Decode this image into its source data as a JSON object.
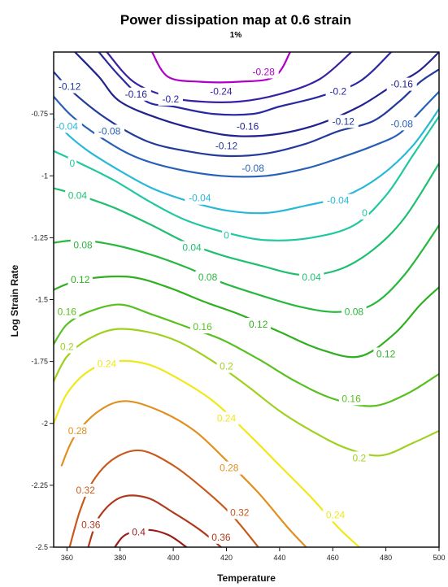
{
  "chart_data": {
    "type": "contour",
    "title": "Power dissipation map at 0.6 strain",
    "subtitle": "1%",
    "xlabel": "Temperature",
    "ylabel": "Log Strain Rate",
    "xlim": [
      355,
      500
    ],
    "ylim": [
      -2.5,
      -0.5
    ],
    "x_ticks": [
      "360",
      "380",
      "400",
      "420",
      "440",
      "460",
      "480",
      "500"
    ],
    "x_tick_values": [
      360,
      380,
      400,
      420,
      440,
      460,
      480,
      500
    ],
    "y_ticks": [
      "-0.75",
      "-1",
      "-1.25",
      "-1.5",
      "-1.75",
      "-2",
      "-2.25",
      "-2.5"
    ],
    "y_tick_values": [
      -0.75,
      -1,
      -1.25,
      -1.5,
      -1.75,
      -2,
      -2.25,
      -2.5
    ],
    "levels": [
      {
        "value": -0.28,
        "color": "#b000c8",
        "points": [
          [
            392,
            -0.5
          ],
          [
            398,
            -0.6
          ],
          [
            410,
            -0.62
          ],
          [
            425,
            -0.62
          ],
          [
            438,
            -0.6
          ],
          [
            444,
            -0.5
          ]
        ],
        "labels": [
          {
            "text": "-0.28",
            "x": 434,
            "y": -0.58
          }
        ]
      },
      {
        "value": -0.24,
        "color": "#3a1fa0",
        "points": [
          [
            375,
            -0.5
          ],
          [
            385,
            -0.62
          ],
          [
            398,
            -0.68
          ],
          [
            410,
            -0.7
          ],
          [
            425,
            -0.7
          ],
          [
            440,
            -0.67
          ],
          [
            455,
            -0.61
          ],
          [
            467,
            -0.5
          ]
        ],
        "labels": [
          {
            "text": "-0.24",
            "x": 418,
            "y": -0.66
          }
        ]
      },
      {
        "value": -0.2,
        "color": "#2828a0",
        "points": [
          [
            372,
            -0.5
          ],
          [
            380,
            -0.6
          ],
          [
            390,
            -0.7
          ],
          [
            400,
            -0.72
          ],
          [
            415,
            -0.75
          ],
          [
            430,
            -0.75
          ],
          [
            440,
            -0.72
          ],
          [
            455,
            -0.68
          ],
          [
            470,
            -0.62
          ],
          [
            482,
            -0.5
          ]
        ],
        "labels": [
          {
            "text": "-0.2",
            "x": 399,
            "y": -0.69
          },
          {
            "text": "-0.2",
            "x": 462,
            "y": -0.66
          }
        ]
      },
      {
        "value": -0.16,
        "color": "#22228e",
        "points": [
          [
            363,
            -0.5
          ],
          [
            372,
            -0.6
          ],
          [
            380,
            -0.7
          ],
          [
            395,
            -0.77
          ],
          [
            412,
            -0.82
          ],
          [
            425,
            -0.84
          ],
          [
            440,
            -0.83
          ],
          [
            455,
            -0.79
          ],
          [
            470,
            -0.72
          ],
          [
            482,
            -0.64
          ],
          [
            492,
            -0.58
          ],
          [
            500,
            -0.5
          ]
        ],
        "labels": [
          {
            "text": "-0.16",
            "x": 386,
            "y": -0.67
          },
          {
            "text": "-0.16",
            "x": 428,
            "y": -0.8
          },
          {
            "text": "-0.16",
            "x": 486,
            "y": -0.63
          }
        ]
      },
      {
        "value": -0.12,
        "color": "#223a9c",
        "points": [
          [
            355,
            -0.58
          ],
          [
            362,
            -0.66
          ],
          [
            375,
            -0.77
          ],
          [
            390,
            -0.86
          ],
          [
            405,
            -0.9
          ],
          [
            420,
            -0.92
          ],
          [
            435,
            -0.91
          ],
          [
            450,
            -0.87
          ],
          [
            462,
            -0.82
          ],
          [
            475,
            -0.78
          ],
          [
            485,
            -0.7
          ],
          [
            493,
            -0.62
          ],
          [
            500,
            -0.57
          ]
        ],
        "labels": [
          {
            "text": "-0.12",
            "x": 361,
            "y": -0.64
          },
          {
            "text": "-0.12",
            "x": 420,
            "y": -0.88
          },
          {
            "text": "-0.12",
            "x": 464,
            "y": -0.78
          }
        ]
      },
      {
        "value": -0.08,
        "color": "#2860b8",
        "points": [
          [
            355,
            -0.68
          ],
          [
            362,
            -0.76
          ],
          [
            372,
            -0.84
          ],
          [
            385,
            -0.92
          ],
          [
            400,
            -0.97
          ],
          [
            418,
            -1.0
          ],
          [
            435,
            -1.0
          ],
          [
            450,
            -0.97
          ],
          [
            462,
            -0.93
          ],
          [
            475,
            -0.88
          ],
          [
            485,
            -0.83
          ],
          [
            492,
            -0.75
          ],
          [
            500,
            -0.66
          ]
        ],
        "labels": [
          {
            "text": "-0.08",
            "x": 376,
            "y": -0.82
          },
          {
            "text": "-0.08",
            "x": 430,
            "y": -0.97
          },
          {
            "text": "-0.08",
            "x": 486,
            "y": -0.79
          }
        ]
      },
      {
        "value": -0.04,
        "color": "#28b8d8",
        "points": [
          [
            355,
            -0.77
          ],
          [
            360,
            -0.83
          ],
          [
            368,
            -0.9
          ],
          [
            380,
            -0.98
          ],
          [
            392,
            -1.05
          ],
          [
            405,
            -1.1
          ],
          [
            420,
            -1.14
          ],
          [
            435,
            -1.15
          ],
          [
            450,
            -1.12
          ],
          [
            465,
            -1.08
          ],
          [
            478,
            -1.0
          ],
          [
            490,
            -0.88
          ],
          [
            500,
            -0.73
          ]
        ],
        "labels": [
          {
            "text": "-0.04",
            "x": 360,
            "y": -0.8
          },
          {
            "text": "-0.04",
            "x": 410,
            "y": -1.09
          },
          {
            "text": "-0.04",
            "x": 462,
            "y": -1.1
          }
        ]
      },
      {
        "value": 0,
        "color": "#20c8a0",
        "points": [
          [
            355,
            -0.9
          ],
          [
            365,
            -0.95
          ],
          [
            378,
            -1.02
          ],
          [
            392,
            -1.11
          ],
          [
            405,
            -1.18
          ],
          [
            420,
            -1.23
          ],
          [
            435,
            -1.26
          ],
          [
            452,
            -1.25
          ],
          [
            468,
            -1.2
          ],
          [
            480,
            -1.08
          ],
          [
            490,
            -0.92
          ],
          [
            500,
            -0.76
          ]
        ],
        "labels": [
          {
            "text": "0",
            "x": 362,
            "y": -0.95
          },
          {
            "text": "0",
            "x": 420,
            "y": -1.24
          },
          {
            "text": "0",
            "x": 472,
            "y": -1.15
          }
        ]
      },
      {
        "value": 0.04,
        "color": "#20c070",
        "points": [
          [
            355,
            -1.05
          ],
          [
            365,
            -1.08
          ],
          [
            378,
            -1.13
          ],
          [
            392,
            -1.2
          ],
          [
            405,
            -1.27
          ],
          [
            418,
            -1.32
          ],
          [
            432,
            -1.36
          ],
          [
            448,
            -1.4
          ],
          [
            462,
            -1.38
          ],
          [
            475,
            -1.3
          ],
          [
            487,
            -1.17
          ],
          [
            500,
            -0.95
          ]
        ],
        "labels": [
          {
            "text": "0.04",
            "x": 364,
            "y": -1.08
          },
          {
            "text": "0.04",
            "x": 407,
            "y": -1.29
          },
          {
            "text": "0.04",
            "x": 452,
            "y": -1.41
          }
        ]
      },
      {
        "value": 0.08,
        "color": "#28b840",
        "points": [
          [
            355,
            -1.27
          ],
          [
            365,
            -1.26
          ],
          [
            378,
            -1.28
          ],
          [
            392,
            -1.32
          ],
          [
            405,
            -1.37
          ],
          [
            418,
            -1.43
          ],
          [
            432,
            -1.48
          ],
          [
            448,
            -1.53
          ],
          [
            462,
            -1.55
          ],
          [
            475,
            -1.52
          ],
          [
            487,
            -1.4
          ],
          [
            500,
            -1.2
          ]
        ],
        "labels": [
          {
            "text": "0.08",
            "x": 366,
            "y": -1.28
          },
          {
            "text": "0.08",
            "x": 413,
            "y": -1.41
          },
          {
            "text": "0.08",
            "x": 468,
            "y": -1.55
          }
        ]
      },
      {
        "value": 0.12,
        "color": "#30b020",
        "points": [
          [
            355,
            -1.46
          ],
          [
            362,
            -1.43
          ],
          [
            372,
            -1.41
          ],
          [
            385,
            -1.41
          ],
          [
            398,
            -1.45
          ],
          [
            412,
            -1.51
          ],
          [
            425,
            -1.56
          ],
          [
            440,
            -1.63
          ],
          [
            455,
            -1.7
          ],
          [
            470,
            -1.73
          ],
          [
            483,
            -1.64
          ],
          [
            493,
            -1.52
          ],
          [
            500,
            -1.45
          ]
        ],
        "labels": [
          {
            "text": "0.12",
            "x": 365,
            "y": -1.42
          },
          {
            "text": "0.12",
            "x": 432,
            "y": -1.6
          },
          {
            "text": "0.12",
            "x": 480,
            "y": -1.72
          }
        ]
      },
      {
        "value": 0.16,
        "color": "#58c020",
        "points": [
          [
            355,
            -1.68
          ],
          [
            360,
            -1.6
          ],
          [
            368,
            -1.55
          ],
          [
            380,
            -1.52
          ],
          [
            392,
            -1.56
          ],
          [
            405,
            -1.61
          ],
          [
            418,
            -1.66
          ],
          [
            432,
            -1.74
          ],
          [
            446,
            -1.83
          ],
          [
            460,
            -1.9
          ],
          [
            475,
            -1.93
          ],
          [
            488,
            -1.88
          ],
          [
            500,
            -1.8
          ]
        ],
        "labels": [
          {
            "text": "0.16",
            "x": 360,
            "y": -1.55
          },
          {
            "text": "0.16",
            "x": 411,
            "y": -1.61
          },
          {
            "text": "0.16",
            "x": 467,
            "y": -1.9
          }
        ]
      },
      {
        "value": 0.2,
        "color": "#a0d020",
        "points": [
          [
            355,
            -1.83
          ],
          [
            360,
            -1.73
          ],
          [
            368,
            -1.66
          ],
          [
            378,
            -1.62
          ],
          [
            390,
            -1.63
          ],
          [
            402,
            -1.67
          ],
          [
            415,
            -1.75
          ],
          [
            428,
            -1.85
          ],
          [
            440,
            -1.95
          ],
          [
            452,
            -2.03
          ],
          [
            465,
            -2.1
          ],
          [
            478,
            -2.13
          ],
          [
            490,
            -2.08
          ],
          [
            500,
            -2.03
          ]
        ],
        "labels": [
          {
            "text": "0.2",
            "x": 360,
            "y": -1.69
          },
          {
            "text": "0.2",
            "x": 420,
            "y": -1.77
          },
          {
            "text": "0.2",
            "x": 470,
            "y": -2.14
          }
        ]
      },
      {
        "value": 0.24,
        "color": "#f0e818",
        "points": [
          [
            355,
            -2.0
          ],
          [
            360,
            -1.88
          ],
          [
            368,
            -1.79
          ],
          [
            378,
            -1.75
          ],
          [
            390,
            -1.76
          ],
          [
            402,
            -1.82
          ],
          [
            415,
            -1.91
          ],
          [
            428,
            -2.04
          ],
          [
            440,
            -2.17
          ],
          [
            452,
            -2.3
          ],
          [
            462,
            -2.42
          ],
          [
            470,
            -2.5
          ]
        ],
        "labels": [
          {
            "text": "0.24",
            "x": 375,
            "y": -1.76
          },
          {
            "text": "0.24",
            "x": 420,
            "y": -1.98
          },
          {
            "text": "0.24",
            "x": 461,
            "y": -2.37
          }
        ]
      },
      {
        "value": 0.28,
        "color": "#e09020",
        "points": [
          [
            358,
            -2.17
          ],
          [
            363,
            -2.05
          ],
          [
            372,
            -1.95
          ],
          [
            382,
            -1.91
          ],
          [
            395,
            -1.95
          ],
          [
            408,
            -2.03
          ],
          [
            420,
            -2.15
          ],
          [
            432,
            -2.28
          ],
          [
            443,
            -2.42
          ],
          [
            450,
            -2.5
          ]
        ],
        "labels": [
          {
            "text": "0.28",
            "x": 364,
            "y": -2.03
          },
          {
            "text": "0.28",
            "x": 421,
            "y": -2.18
          }
        ]
      },
      {
        "value": 0.32,
        "color": "#c85a1e",
        "points": [
          [
            361,
            -2.5
          ],
          [
            365,
            -2.35
          ],
          [
            370,
            -2.23
          ],
          [
            378,
            -2.14
          ],
          [
            388,
            -2.11
          ],
          [
            400,
            -2.17
          ],
          [
            412,
            -2.27
          ],
          [
            422,
            -2.37
          ],
          [
            432,
            -2.5
          ]
        ],
        "labels": [
          {
            "text": "0.32",
            "x": 367,
            "y": -2.27
          },
          {
            "text": "0.32",
            "x": 425,
            "y": -2.36
          }
        ]
      },
      {
        "value": 0.36,
        "color": "#b03a1c",
        "points": [
          [
            368,
            -2.5
          ],
          [
            372,
            -2.38
          ],
          [
            380,
            -2.3
          ],
          [
            390,
            -2.3
          ],
          [
            400,
            -2.36
          ],
          [
            410,
            -2.43
          ],
          [
            418,
            -2.5
          ]
        ],
        "labels": [
          {
            "text": "0.36",
            "x": 369,
            "y": -2.41
          },
          {
            "text": "0.36",
            "x": 418,
            "y": -2.46
          }
        ]
      },
      {
        "value": 0.4,
        "color": "#9a1c18",
        "points": [
          [
            378,
            -2.5
          ],
          [
            382,
            -2.45
          ],
          [
            390,
            -2.43
          ],
          [
            398,
            -2.45
          ],
          [
            405,
            -2.5
          ]
        ],
        "labels": [
          {
            "text": "0.4",
            "x": 387,
            "y": -2.44
          }
        ]
      }
    ]
  }
}
